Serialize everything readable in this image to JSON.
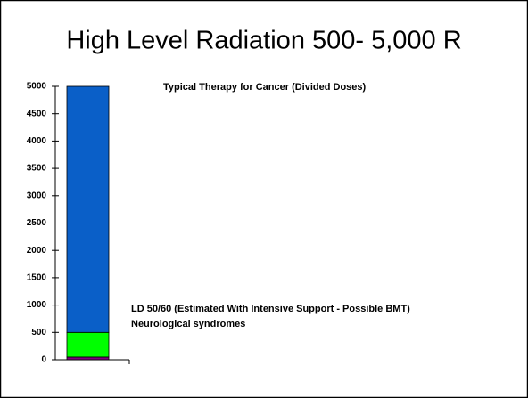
{
  "chart_data": {
    "type": "stacked_bar",
    "title": "High Level Radiation 500- 5,000 R",
    "categories": [
      null
    ],
    "series": [
      {
        "color": "#800080",
        "values": [
          50
        ]
      },
      {
        "color": "#00ff00",
        "values": [
          450
        ]
      },
      {
        "color": "#0a5fc8",
        "values": [
          4500
        ]
      }
    ],
    "annotations": [
      "Typical Therapy for Cancer (Divided Doses)",
      "LD 50/60 (Estimated With Intensive Support - Possible BMT)",
      "Neurological syndromes"
    ],
    "ylim": [
      0,
      5000
    ],
    "yticks": [
      0,
      500,
      1000,
      1500,
      2000,
      2500,
      3000,
      3500,
      4000,
      4500,
      5000
    ]
  }
}
